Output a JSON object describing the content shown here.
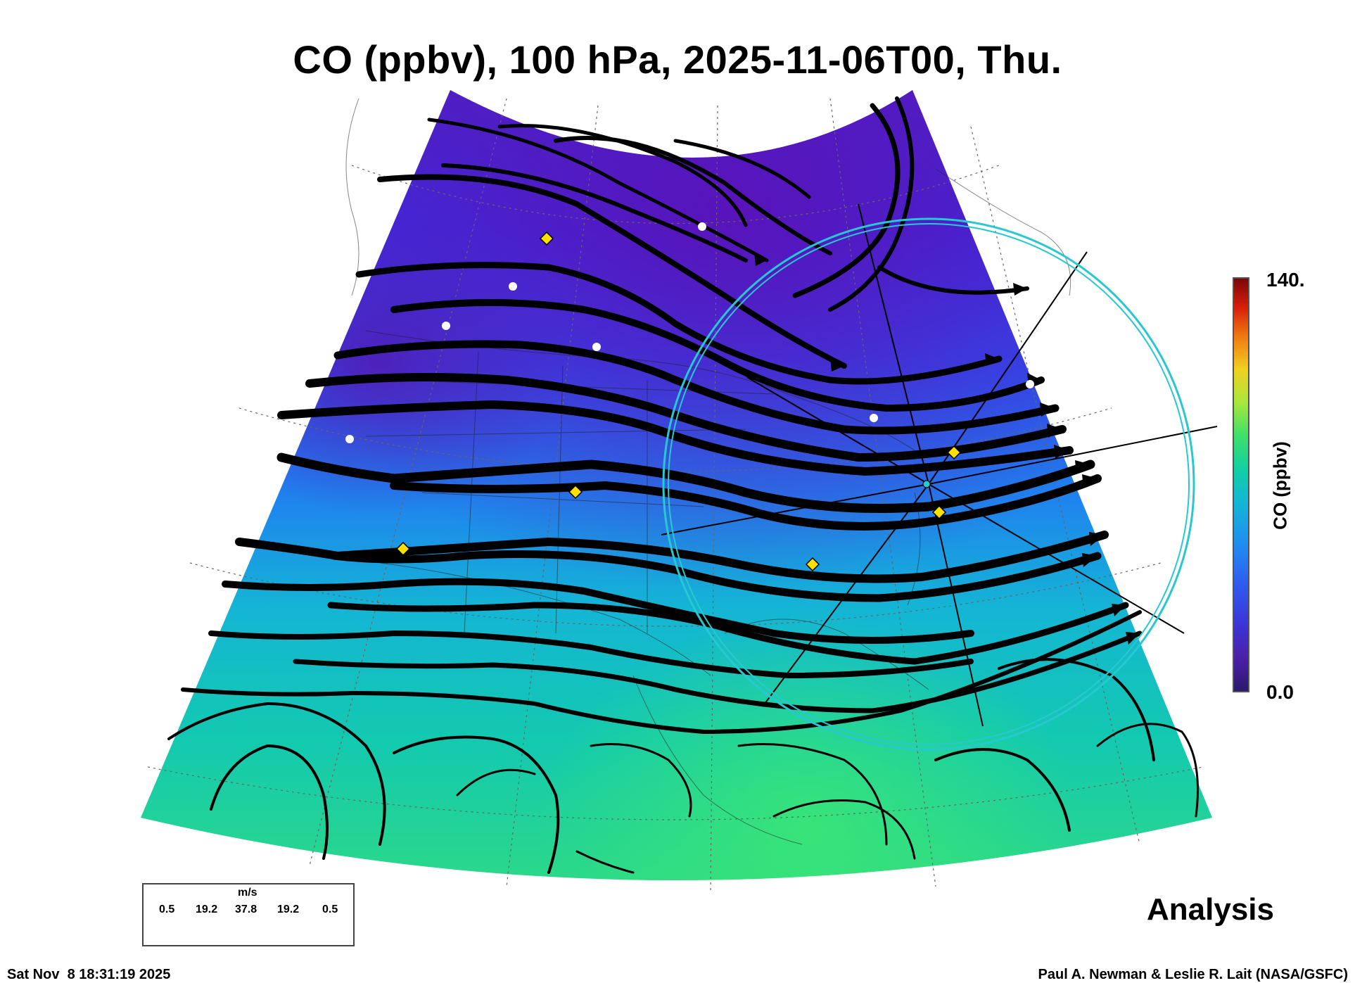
{
  "title": "CO (ppbv), 100 hPa, 2025-11-06T00, Thu.",
  "colorbar": {
    "label": "CO (ppbv)",
    "max_label": "140.",
    "min_label": "0.0",
    "min": 0,
    "max": 140,
    "colormap": [
      "#2a1a6e",
      "#4b1fa8",
      "#3b34d6",
      "#2f5cf0",
      "#1f8ff0",
      "#12b7d6",
      "#12d0a0",
      "#3ee06a",
      "#a8e83a",
      "#f0d020",
      "#f07a10",
      "#d81e0a",
      "#7a0606"
    ]
  },
  "legend": {
    "unit": "m/s",
    "values": [
      "0.5",
      "19.2",
      "37.8",
      "19.2",
      "0.5"
    ]
  },
  "product": "Analysis",
  "timestamp": "Sat Nov  8 18:31:19 2025",
  "credit": "Paul A. Newman & Leslie R. Lait (NASA/GSFC)",
  "map": {
    "field": "carbon monoxide mixing ratio",
    "level": "100 hPa",
    "overlays": [
      "wind streamlines",
      "range ring",
      "radial flight lines",
      "state and country boundaries",
      "latitude/longitude graticule"
    ],
    "field_colors": {
      "north": "#4a1fb8",
      "mid": "#2f62e8",
      "south": "#12c8a8",
      "gulf": "#2ee07a"
    },
    "markers": {
      "star_color": "#ffffff",
      "diamond_color": "#ffe000",
      "ring_color": "#28c8d0"
    }
  }
}
